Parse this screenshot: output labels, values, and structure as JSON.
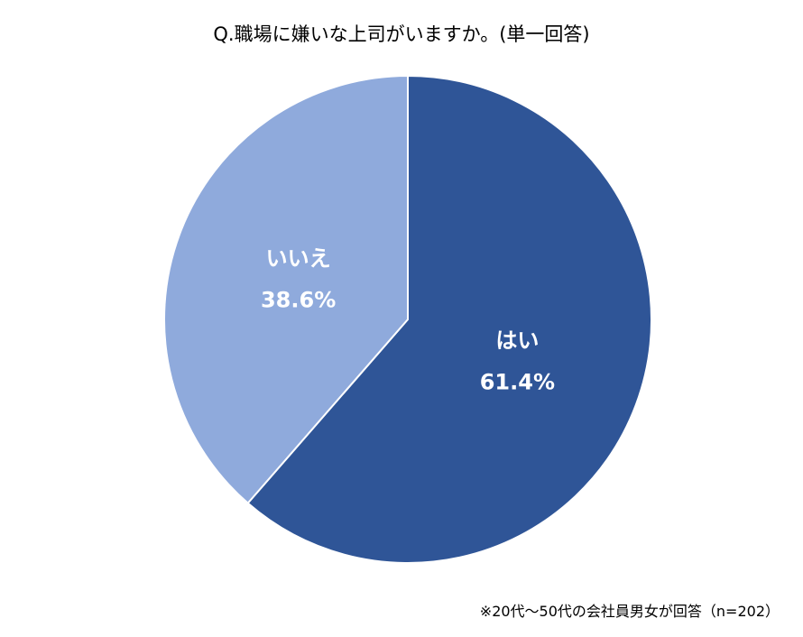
{
  "chart_data": {
    "type": "pie",
    "title": "Q.職場に嫌いな上司がいますか。(単一回答)",
    "slices": [
      {
        "label": "はい",
        "value": 61.4,
        "value_label": "61.4%",
        "color": "#2f5597"
      },
      {
        "label": "いいえ",
        "value": 38.6,
        "value_label": "38.6%",
        "color": "#8faadc"
      }
    ],
    "start": "12 o'clock",
    "direction": "clockwise",
    "legend": "none"
  },
  "footnote": "※20代～50代の会社員男女が回答（n=202）"
}
